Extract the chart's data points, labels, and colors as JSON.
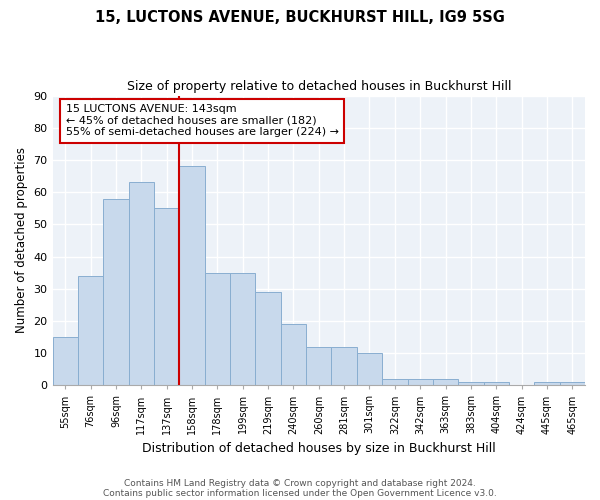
{
  "title1": "15, LUCTONS AVENUE, BUCKHURST HILL, IG9 5SG",
  "title2": "Size of property relative to detached houses in Buckhurst Hill",
  "xlabel": "Distribution of detached houses by size in Buckhurst Hill",
  "ylabel": "Number of detached properties",
  "bar_color": "#c8d9ec",
  "bar_edge_color": "#89aed0",
  "bins": [
    "55sqm",
    "76sqm",
    "96sqm",
    "117sqm",
    "137sqm",
    "158sqm",
    "178sqm",
    "199sqm",
    "219sqm",
    "240sqm",
    "260sqm",
    "281sqm",
    "301sqm",
    "322sqm",
    "342sqm",
    "363sqm",
    "383sqm",
    "404sqm",
    "424sqm",
    "445sqm",
    "465sqm"
  ],
  "values": [
    15,
    34,
    58,
    63,
    55,
    68,
    35,
    35,
    29,
    19,
    12,
    12,
    10,
    2,
    2,
    2,
    1,
    1,
    0,
    1,
    1
  ],
  "vline_x_idx": 4,
  "vline_color": "#cc0000",
  "annotation_text": "15 LUCTONS AVENUE: 143sqm\n← 45% of detached houses are smaller (182)\n55% of semi-detached houses are larger (224) →",
  "ylim": [
    0,
    90
  ],
  "yticks": [
    0,
    10,
    20,
    30,
    40,
    50,
    60,
    70,
    80,
    90
  ],
  "footer1": "Contains HM Land Registry data © Crown copyright and database right 2024.",
  "footer2": "Contains public sector information licensed under the Open Government Licence v3.0.",
  "background_color": "#edf2f8",
  "grid_color": "#ffffff",
  "spine_color": "#aaaaaa"
}
